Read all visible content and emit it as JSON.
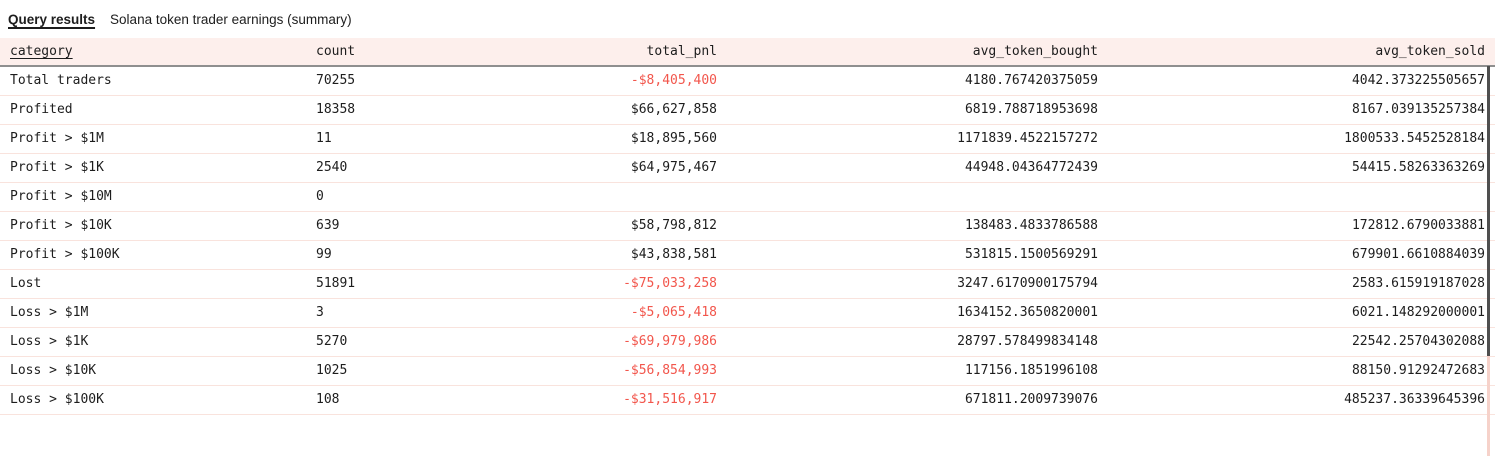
{
  "titlebar": {
    "tab_label": "Query results",
    "subtitle": "Solana token trader earnings (summary)"
  },
  "table": {
    "columns": [
      {
        "key": "category",
        "label": "category",
        "align": "left",
        "sorted": true
      },
      {
        "key": "count",
        "label": "count",
        "align": "left",
        "sorted": false
      },
      {
        "key": "total_pnl",
        "label": "total_pnl",
        "align": "right",
        "sorted": false
      },
      {
        "key": "avg_token_bought",
        "label": "avg_token_bought",
        "align": "right",
        "sorted": false
      },
      {
        "key": "avg_token_sold",
        "label": "avg_token_sold",
        "align": "right",
        "sorted": false
      }
    ],
    "rows": [
      [
        "Total traders",
        "70255",
        "-$8,405,400",
        "4180.767420375059",
        "4042.373225505657"
      ],
      [
        "Profited",
        "18358",
        "$66,627,858",
        "6819.788718953698",
        "8167.039135257384"
      ],
      [
        "Profit > $1M",
        "11",
        "$18,895,560",
        "1171839.4522157272",
        "1800533.5452528184"
      ],
      [
        "Profit > $1K",
        "2540",
        "$64,975,467",
        "44948.04364772439",
        "54415.58263363269"
      ],
      [
        "Profit > $10M",
        "0",
        "",
        "",
        ""
      ],
      [
        "Profit > $10K",
        "639",
        "$58,798,812",
        "138483.4833786588",
        "172812.6790033881"
      ],
      [
        "Profit > $100K",
        "99",
        "$43,838,581",
        "531815.1500569291",
        "679901.6610884039"
      ],
      [
        "Lost",
        "51891",
        "-$75,033,258",
        "3247.6170900175794",
        "2583.615919187028"
      ],
      [
        "Loss > $1M",
        "3",
        "-$5,065,418",
        "1634152.3650820001",
        "6021.148292000001"
      ],
      [
        "Loss > $1K",
        "5270",
        "-$69,979,986",
        "28797.578499834148",
        "22542.25704302088"
      ],
      [
        "Loss > $10K",
        "1025",
        "-$56,854,993",
        "117156.1851996108",
        "88150.91292472683"
      ],
      [
        "Loss > $100K",
        "108",
        "-$31,516,917",
        "671811.2009739076",
        "485237.36339645396"
      ]
    ]
  },
  "colors": {
    "negative_text": "#f2564c",
    "header_background": "#fdefec",
    "row_divider": "#f9e3dd",
    "header_divider": "#8f8f8f",
    "scrollbar_thumb": "#4f4f4f",
    "scrollbar_track": "#f6d2ca",
    "text": "#1d1d1d"
  }
}
